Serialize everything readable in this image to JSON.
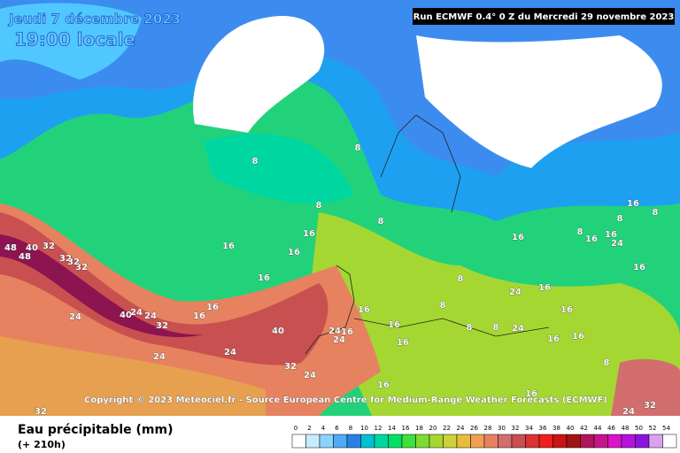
{
  "header": {
    "date": "Jeudi 7 décembre 2023",
    "time": "19:00 locale",
    "run": "Run ECMWF 0.4° 0 Z du Mercredi 29 novembre 2023"
  },
  "copyright": "Copyright © 2023 Meteociel.fr - Source European Centre for Medium-Range Weather Forecasts (ECMWF)",
  "legend": {
    "title": "Eau précipitable (mm)",
    "subtitle": "(+ 210h)",
    "ticks": [
      0,
      2,
      4,
      6,
      8,
      10,
      12,
      14,
      16,
      18,
      20,
      22,
      24,
      26,
      28,
      30,
      32,
      34,
      36,
      38,
      40,
      42,
      44,
      46,
      48,
      50,
      52,
      54
    ],
    "colors": [
      "#ffffff",
      "#c8ecff",
      "#8cd2ff",
      "#50aaf5",
      "#2882e6",
      "#00c0d2",
      "#00d7a0",
      "#00e164",
      "#3ce13c",
      "#7ddc32",
      "#a5d732",
      "#cdd23c",
      "#e6be3c",
      "#f0a050",
      "#e6825f",
      "#d26e6e",
      "#c85050",
      "#dc3232",
      "#f01e1e",
      "#c81414",
      "#a01414",
      "#b4145a",
      "#c8148c",
      "#dc14c8",
      "#b414dc",
      "#8c14dc",
      "#dca0f0",
      "#ffffff"
    ]
  },
  "contour_labels": [
    8,
    8,
    8,
    8,
    8,
    8,
    8,
    8,
    16,
    16,
    16,
    16,
    16,
    16,
    16,
    16,
    48,
    48,
    40,
    32,
    32,
    32,
    32,
    40,
    24,
    24,
    24,
    24,
    32,
    24,
    40,
    24,
    24,
    32,
    24,
    16,
    16,
    16,
    16,
    16,
    16,
    24,
    24,
    16,
    16,
    24,
    16,
    16,
    32,
    24,
    8,
    8,
    8,
    16,
    16,
    8,
    16,
    32
  ]
}
